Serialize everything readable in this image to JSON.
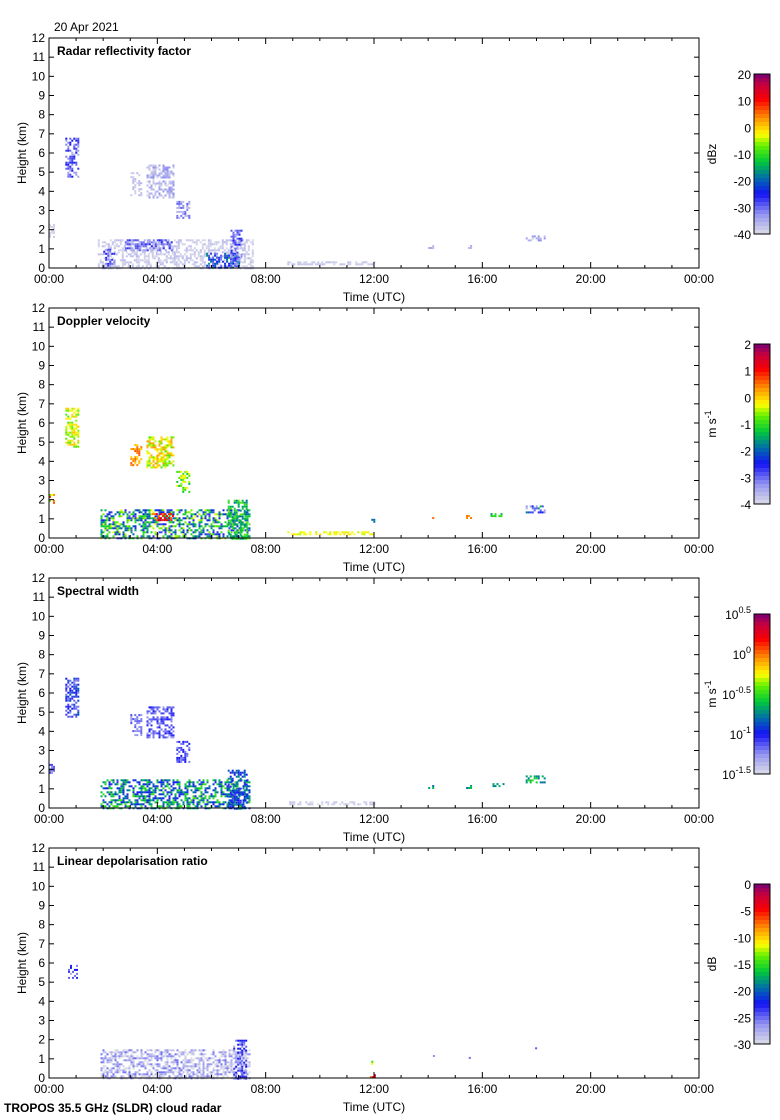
{
  "date": "20 Apr 2021",
  "footer": "TROPOS 35.5 GHz (SLDR) cloud radar",
  "chart_data": [
    {
      "type": "heatmap",
      "title": "Radar reflectivity factor",
      "xlabel": "Time (UTC)",
      "ylabel": "Height (km)",
      "xticks": [
        "00:00",
        "04:00",
        "08:00",
        "12:00",
        "16:00",
        "20:00",
        "00:00"
      ],
      "xlim_hours": [
        0,
        24
      ],
      "ylim": [
        0,
        12
      ],
      "yticks": [
        "0",
        "1",
        "2",
        "3",
        "4",
        "5",
        "6",
        "7",
        "8",
        "9",
        "10",
        "11",
        "12"
      ],
      "colorbar": {
        "unit": "dBz",
        "range": [
          -40,
          20
        ],
        "ticks": [
          "20",
          "10",
          "0",
          "-10",
          "-20",
          "-30",
          "-40"
        ]
      },
      "regions": [
        {
          "t": [
            0.6,
            1.1
          ],
          "h": [
            4.8,
            6.8
          ],
          "value": -30,
          "spread": 6
        },
        {
          "t": [
            0,
            0.2
          ],
          "h": [
            1.6,
            2.3
          ],
          "value": -39,
          "spread": 1
        },
        {
          "t": [
            1.8,
            7.5
          ],
          "h": [
            0,
            1.5
          ],
          "value": -38,
          "spread": 2
        },
        {
          "t": [
            2.0,
            2.4
          ],
          "h": [
            0,
            1.0
          ],
          "value": -30,
          "spread": 5
        },
        {
          "t": [
            2.8,
            4.5
          ],
          "h": [
            0.9,
            1.5
          ],
          "value": -31,
          "spread": 5
        },
        {
          "t": [
            3.0,
            3.4
          ],
          "h": [
            3.8,
            5.0
          ],
          "value": -38,
          "spread": 2
        },
        {
          "t": [
            3.6,
            4.6
          ],
          "h": [
            3.7,
            5.4
          ],
          "value": -36,
          "spread": 4
        },
        {
          "t": [
            4.7,
            5.2
          ],
          "h": [
            2.6,
            3.5
          ],
          "value": -33,
          "spread": 4
        },
        {
          "t": [
            5.8,
            7.0
          ],
          "h": [
            0,
            0.8
          ],
          "value": -24,
          "spread": 8
        },
        {
          "t": [
            6.7,
            7.1
          ],
          "h": [
            0.2,
            2.0
          ],
          "value": -30,
          "spread": 5
        },
        {
          "t": [
            8.8,
            12.0
          ],
          "h": [
            0.2,
            0.35
          ],
          "value": -38,
          "spread": 1
        },
        {
          "t": [
            14.0,
            14.2
          ],
          "h": [
            1.0,
            1.2
          ],
          "value": -36,
          "spread": 2
        },
        {
          "t": [
            15.4,
            15.6
          ],
          "h": [
            1.0,
            1.2
          ],
          "value": -36,
          "spread": 2
        },
        {
          "t": [
            17.6,
            18.3
          ],
          "h": [
            1.4,
            1.7
          ],
          "value": -35,
          "spread": 3
        }
      ]
    },
    {
      "type": "heatmap",
      "title": "Doppler velocity",
      "xlabel": "Time (UTC)",
      "ylabel": "Height (km)",
      "xticks": [
        "00:00",
        "04:00",
        "08:00",
        "12:00",
        "16:00",
        "20:00",
        "00:00"
      ],
      "xlim_hours": [
        0,
        24
      ],
      "ylim": [
        0,
        12
      ],
      "yticks": [
        "0",
        "1",
        "2",
        "3",
        "4",
        "5",
        "6",
        "7",
        "8",
        "9",
        "10",
        "11",
        "12"
      ],
      "colorbar": {
        "unit": "m s-1",
        "range": [
          -4,
          2
        ],
        "ticks": [
          "2",
          "1",
          "0",
          "-1",
          "-2",
          "-3",
          "-4"
        ]
      },
      "regions": [
        {
          "t": [
            0,
            0.2
          ],
          "h": [
            1.8,
            2.3
          ],
          "value": 0,
          "spread": 0.8
        },
        {
          "t": [
            0.6,
            1.1
          ],
          "h": [
            4.8,
            6.8
          ],
          "value": -0.4,
          "spread": 0.5
        },
        {
          "t": [
            3.0,
            3.4
          ],
          "h": [
            3.8,
            4.9
          ],
          "value": 0.3,
          "spread": 0.4
        },
        {
          "t": [
            3.6,
            4.6
          ],
          "h": [
            3.7,
            5.3
          ],
          "value": -0.3,
          "spread": 0.6
        },
        {
          "t": [
            4.7,
            5.2
          ],
          "h": [
            2.4,
            3.5
          ],
          "value": -0.8,
          "spread": 0.6
        },
        {
          "t": [
            1.9,
            7.4
          ],
          "h": [
            0,
            1.5
          ],
          "value": -1.6,
          "spread": 1.3
        },
        {
          "t": [
            3.8,
            4.6
          ],
          "h": [
            0.9,
            1.3
          ],
          "value": 1.0,
          "spread": 0.6
        },
        {
          "t": [
            6.6,
            7.3
          ],
          "h": [
            0,
            2.0
          ],
          "value": -1.3,
          "spread": 0.6
        },
        {
          "t": [
            8.8,
            12.0
          ],
          "h": [
            0.2,
            0.35
          ],
          "value": -0.3,
          "spread": 0.2
        },
        {
          "t": [
            11.9,
            12.0
          ],
          "h": [
            0.7,
            1.0
          ],
          "value": -1.8,
          "spread": 0.4
        },
        {
          "t": [
            14.0,
            14.2
          ],
          "h": [
            1.0,
            1.2
          ],
          "value": 0.5,
          "spread": 0.3
        },
        {
          "t": [
            15.4,
            15.6
          ],
          "h": [
            1.0,
            1.2
          ],
          "value": 0.5,
          "spread": 0.3
        },
        {
          "t": [
            16.3,
            16.8
          ],
          "h": [
            1.1,
            1.3
          ],
          "value": -1.3,
          "spread": 0.4
        },
        {
          "t": [
            17.6,
            18.3
          ],
          "h": [
            1.3,
            1.7
          ],
          "value": -2.5,
          "spread": 1.2
        }
      ]
    },
    {
      "type": "heatmap",
      "title": "Spectral width",
      "xlabel": "Time (UTC)",
      "ylabel": "Height (km)",
      "xticks": [
        "00:00",
        "04:00",
        "08:00",
        "12:00",
        "16:00",
        "20:00",
        "00:00"
      ],
      "xlim_hours": [
        0,
        24
      ],
      "ylim": [
        0,
        12
      ],
      "yticks": [
        "0",
        "1",
        "2",
        "3",
        "4",
        "5",
        "6",
        "7",
        "8",
        "9",
        "10",
        "11",
        "12"
      ],
      "colorbar": {
        "unit": "m s-1",
        "scale": "log10",
        "range": [
          -1.5,
          0.5
        ],
        "ticks": [
          "10^0.5",
          "10^0",
          "10^-0.5",
          "10^-1",
          "10^-1.5"
        ]
      },
      "regions": [
        {
          "t": [
            0,
            0.2
          ],
          "h": [
            1.8,
            2.3
          ],
          "value": -1.2,
          "spread": 0.1
        },
        {
          "t": [
            0.6,
            1.1
          ],
          "h": [
            4.8,
            6.8
          ],
          "value": -1.05,
          "spread": 0.2
        },
        {
          "t": [
            3.0,
            3.4
          ],
          "h": [
            3.8,
            4.9
          ],
          "value": -1.2,
          "spread": 0.1
        },
        {
          "t": [
            3.6,
            4.6
          ],
          "h": [
            3.7,
            5.3
          ],
          "value": -1.15,
          "spread": 0.15
        },
        {
          "t": [
            4.7,
            5.2
          ],
          "h": [
            2.4,
            3.5
          ],
          "value": -1.1,
          "spread": 0.15
        },
        {
          "t": [
            1.9,
            7.4
          ],
          "h": [
            0,
            1.5
          ],
          "value": -0.75,
          "spread": 0.3
        },
        {
          "t": [
            6.6,
            7.3
          ],
          "h": [
            0,
            2.0
          ],
          "value": -0.9,
          "spread": 0.2
        },
        {
          "t": [
            8.8,
            12.0
          ],
          "h": [
            0.2,
            0.35
          ],
          "value": -1.45,
          "spread": 0.05
        },
        {
          "t": [
            14.0,
            14.2
          ],
          "h": [
            1.0,
            1.2
          ],
          "value": -0.7,
          "spread": 0.1
        },
        {
          "t": [
            15.4,
            15.6
          ],
          "h": [
            1.0,
            1.2
          ],
          "value": -0.7,
          "spread": 0.1
        },
        {
          "t": [
            16.3,
            16.8
          ],
          "h": [
            1.1,
            1.3
          ],
          "value": -0.7,
          "spread": 0.1
        },
        {
          "t": [
            17.6,
            18.3
          ],
          "h": [
            1.3,
            1.7
          ],
          "value": -0.65,
          "spread": 0.15
        }
      ]
    },
    {
      "type": "heatmap",
      "title": "Linear depolarisation ratio",
      "xlabel": "Time (UTC)",
      "ylabel": "Height (km)",
      "xticks": [
        "00:00",
        "04:00",
        "08:00",
        "12:00",
        "16:00",
        "20:00",
        "00:00"
      ],
      "xlim_hours": [
        0,
        24
      ],
      "ylim": [
        0,
        12
      ],
      "yticks": [
        "0",
        "1",
        "2",
        "3",
        "4",
        "5",
        "6",
        "7",
        "8",
        "9",
        "10",
        "11",
        "12"
      ],
      "colorbar": {
        "unit": "dB",
        "range": [
          -30,
          0
        ],
        "ticks": [
          "0",
          "-5",
          "-10",
          "-15",
          "-20",
          "-25",
          "-30"
        ]
      },
      "regions": [
        {
          "t": [
            0.7,
            1.0
          ],
          "h": [
            5.2,
            5.9
          ],
          "value": -25,
          "spread": 3
        },
        {
          "t": [
            1.9,
            7.4
          ],
          "h": [
            0,
            1.5
          ],
          "value": -28,
          "spread": 3
        },
        {
          "t": [
            6.8,
            7.3
          ],
          "h": [
            0,
            2.0
          ],
          "value": -25,
          "spread": 3
        },
        {
          "t": [
            4.8,
            4.9
          ],
          "h": [
            3.1,
            3.2
          ],
          "value": -15,
          "spread": 2
        },
        {
          "t": [
            11.9,
            12.0
          ],
          "h": [
            0.7,
            1.0
          ],
          "value": -13,
          "spread": 2
        },
        {
          "t": [
            11.85,
            12.0
          ],
          "h": [
            0,
            0.2
          ],
          "value": -5,
          "spread": 2
        },
        {
          "t": [
            14.1,
            14.2
          ],
          "h": [
            1.1,
            1.2
          ],
          "value": -25,
          "spread": 2
        },
        {
          "t": [
            15.5,
            15.6
          ],
          "h": [
            1.0,
            1.1
          ],
          "value": -25,
          "spread": 2
        },
        {
          "t": [
            17.8,
            18.0
          ],
          "h": [
            1.5,
            1.6
          ],
          "value": -25,
          "spread": 2
        }
      ]
    }
  ]
}
